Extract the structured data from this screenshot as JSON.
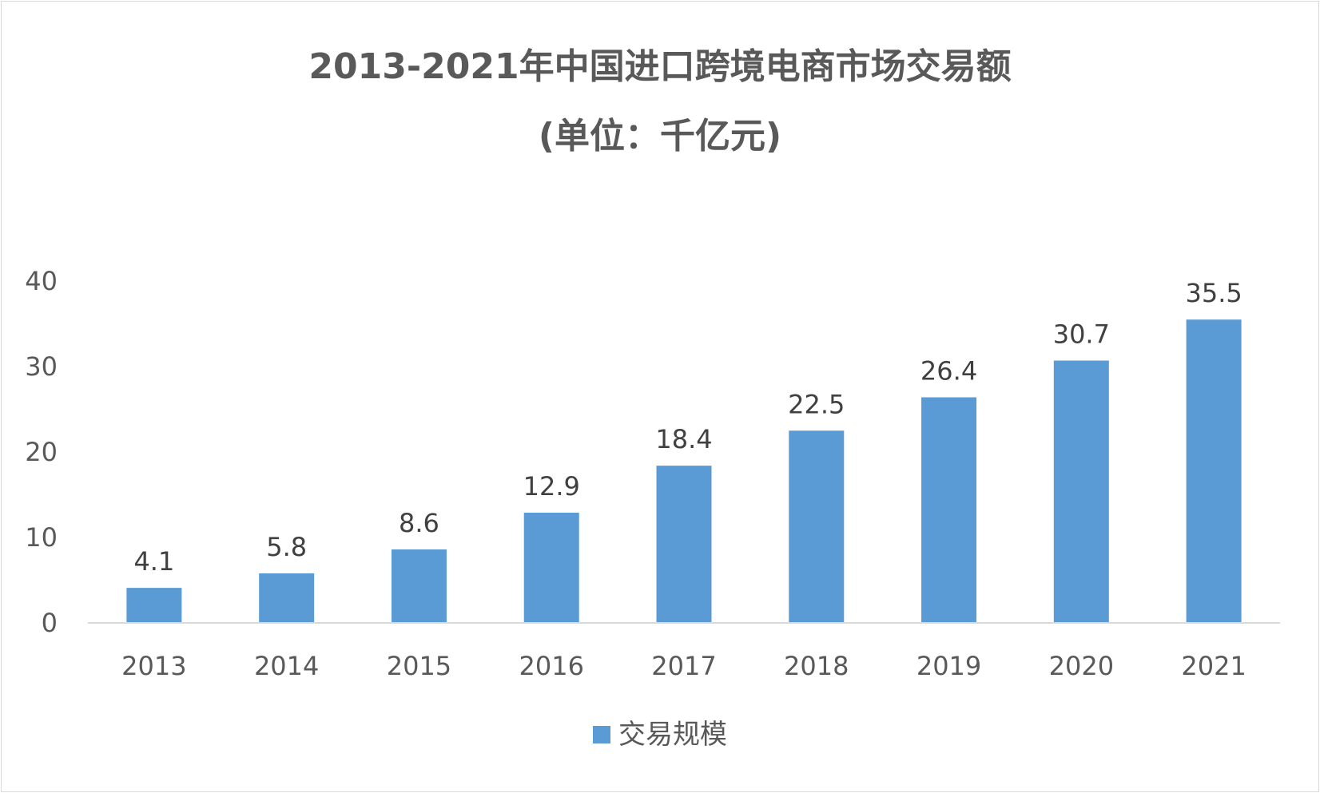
{
  "chart_data": {
    "type": "bar",
    "title": "2013-2021年中国进口跨境电商市场交易额",
    "subtitle": "(单位：千亿元)",
    "categories": [
      "2013",
      "2014",
      "2015",
      "2016",
      "2017",
      "2018",
      "2019",
      "2020",
      "2021"
    ],
    "series": [
      {
        "name": "交易规模",
        "values": [
          4.1,
          5.8,
          8.6,
          12.9,
          18.4,
          22.5,
          26.4,
          30.7,
          35.5
        ],
        "color": "#5b9bd5"
      }
    ],
    "value_labels": [
      "4.1",
      "5.8",
      "8.6",
      "12.9",
      "18.4",
      "22.5",
      "26.4",
      "30.7",
      "35.5"
    ],
    "ylim": [
      0,
      40
    ],
    "yticks": [
      0,
      10,
      20,
      30,
      40
    ],
    "ytick_labels": [
      "0",
      "10",
      "20",
      "30",
      "40"
    ],
    "xlabel": "",
    "ylabel": "",
    "grid": false,
    "legend_position": "bottom"
  }
}
